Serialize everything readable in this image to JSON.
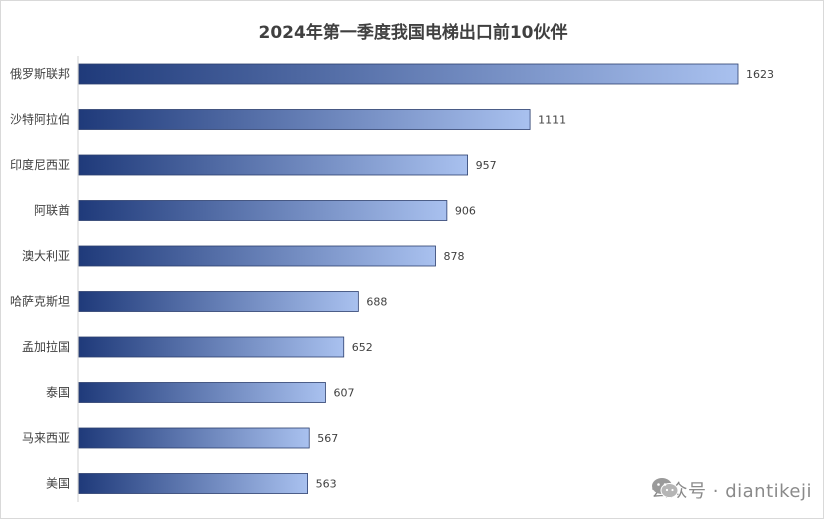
{
  "chart_data": {
    "type": "bar",
    "orientation": "horizontal",
    "title": "2024年第一季度我国电梯出口前10伙伴",
    "categories": [
      "俄罗斯联邦",
      "沙特阿拉伯",
      "印度尼西亚",
      "阿联酋",
      "澳大利亚",
      "哈萨克斯坦",
      "孟加拉国",
      "泰国",
      "马来西亚",
      "美国"
    ],
    "values": [
      1623,
      1111,
      957,
      906,
      878,
      688,
      652,
      607,
      567,
      563
    ],
    "xlim": [
      0,
      1623
    ],
    "grid": false,
    "legend": "none",
    "colors": {
      "bar_start": "#1f3a7a",
      "bar_end": "#a9c1ef",
      "bar_stroke": "#2c3f6e"
    }
  },
  "watermark": {
    "icon": "wechat-icon",
    "text": "公众号 · diantikeji"
  }
}
